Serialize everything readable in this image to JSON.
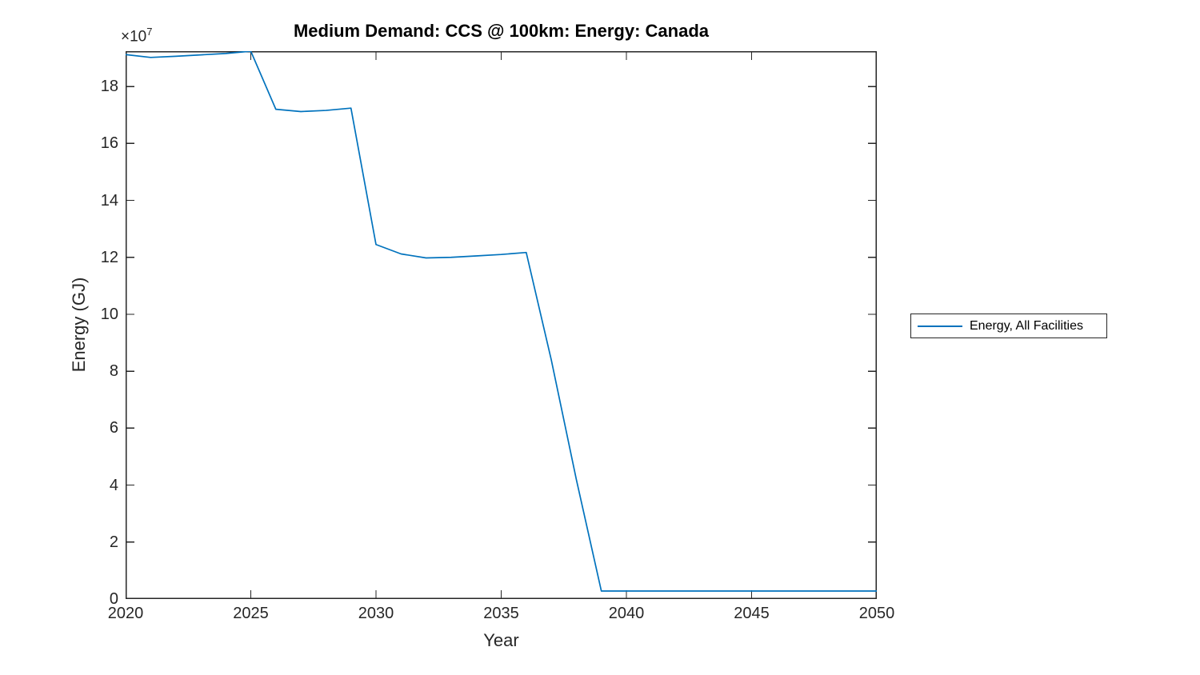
{
  "figure": {
    "background": "#ffffff"
  },
  "chart_data": {
    "type": "line",
    "title": "Medium Demand: CCS @ 100km: Energy: Canada",
    "xlabel": "Year",
    "ylabel": "Energy (GJ)",
    "y_offset_label": {
      "times": "×10",
      "exponent": "7"
    },
    "xlim": [
      2020,
      2050
    ],
    "ylim": [
      0,
      19.24
    ],
    "x_ticks": [
      2020,
      2025,
      2030,
      2035,
      2040,
      2045,
      2050
    ],
    "y_ticks": [
      0,
      2,
      4,
      6,
      8,
      10,
      12,
      14,
      16,
      18
    ],
    "grid": false,
    "legend_position": "right-outside",
    "axis_color": "#262626",
    "series": [
      {
        "name": "Energy, All Facilities",
        "color": "#0072BD",
        "x": [
          2020,
          2021,
          2022,
          2023,
          2024,
          2025,
          2026,
          2027,
          2028,
          2029,
          2030,
          2031,
          2032,
          2033,
          2034,
          2035,
          2036,
          2037,
          2038,
          2039,
          2040,
          2041,
          2042,
          2043,
          2044,
          2045,
          2046,
          2047,
          2048,
          2049,
          2050
        ],
        "y": [
          19.12,
          19.02,
          19.06,
          19.11,
          19.16,
          19.24,
          17.2,
          17.12,
          17.16,
          17.24,
          12.45,
          12.12,
          11.98,
          12.0,
          12.05,
          12.1,
          12.17,
          8.4,
          4.2,
          0.28,
          0.28,
          0.28,
          0.28,
          0.28,
          0.28,
          0.28,
          0.28,
          0.28,
          0.28,
          0.28,
          0.28
        ]
      }
    ]
  },
  "legend": {
    "entries": [
      {
        "label": "Energy, All Facilities",
        "color": "#0072BD"
      }
    ]
  }
}
